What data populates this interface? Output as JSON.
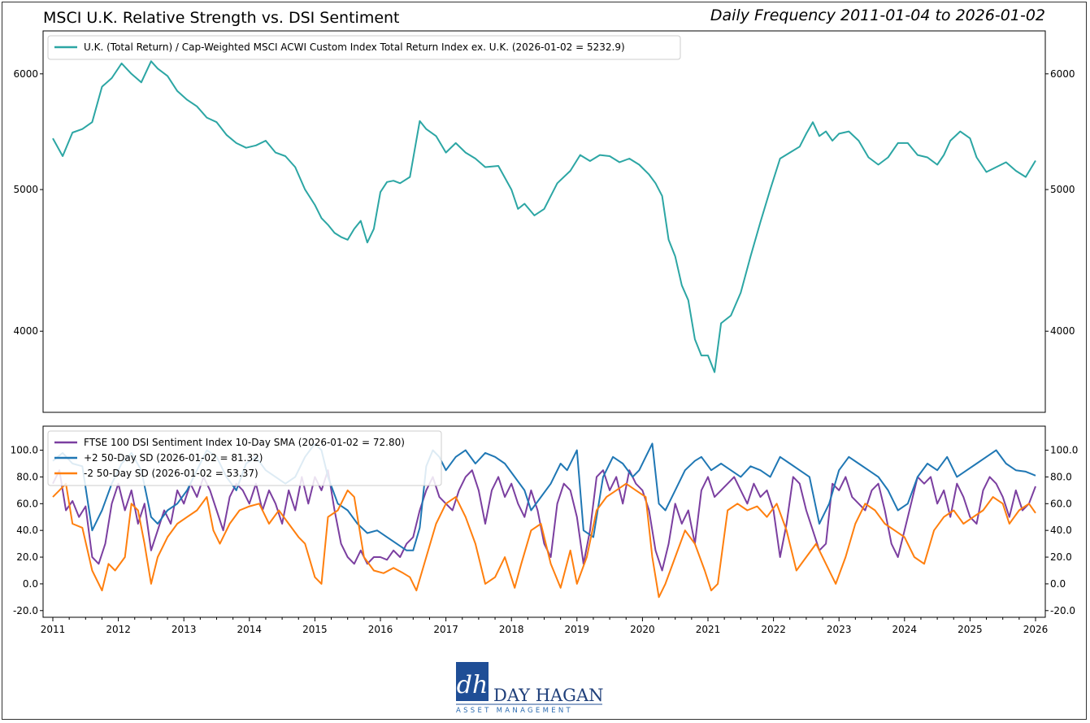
{
  "header": {
    "title": "MSCI U.K. Relative Strength vs. DSI Sentiment",
    "subtitle": "Daily Frequency 2011-01-04 to 2026-01-02"
  },
  "logo": {
    "line1": "DAY HAGAN",
    "line2": "ASSET MANAGEMENT",
    "monogram": "dh"
  },
  "colors": {
    "top_series": "#2ca6a4",
    "dsi": "#7b3fa0",
    "upper_band": "#1f77b4",
    "lower_band": "#ff7f0e"
  },
  "chart_data": [
    {
      "type": "line",
      "scale": "log",
      "x_range": [
        2011.0,
        2026.0
      ],
      "ylim": [
        3520,
        6420
      ],
      "yticks": [
        4000,
        5000,
        6000
      ],
      "grid": false,
      "legend_position": "top-left",
      "series": [
        {
          "name": "U.K. (Total Return) / Cap-Weighted MSCI ACWI Custom Index Total Return Index ex. U.K. (2026-01-02 = 5232.9)",
          "x": [
            2011.0,
            2011.15,
            2011.3,
            2011.45,
            2011.6,
            2011.75,
            2011.9,
            2012.05,
            2012.2,
            2012.35,
            2012.5,
            2012.6,
            2012.75,
            2012.9,
            2013.05,
            2013.2,
            2013.35,
            2013.5,
            2013.65,
            2013.8,
            2013.95,
            2014.1,
            2014.25,
            2014.4,
            2014.55,
            2014.7,
            2014.85,
            2015.0,
            2015.1,
            2015.2,
            2015.3,
            2015.4,
            2015.5,
            2015.6,
            2015.7,
            2015.8,
            2015.9,
            2016.0,
            2016.1,
            2016.2,
            2016.3,
            2016.45,
            2016.6,
            2016.7,
            2016.85,
            2017.0,
            2017.15,
            2017.3,
            2017.45,
            2017.6,
            2017.8,
            2018.0,
            2018.1,
            2018.2,
            2018.35,
            2018.5,
            2018.7,
            2018.9,
            2019.05,
            2019.2,
            2019.35,
            2019.5,
            2019.65,
            2019.8,
            2019.95,
            2020.1,
            2020.2,
            2020.3,
            2020.4,
            2020.5,
            2020.6,
            2020.7,
            2020.8,
            2020.9,
            2021.0,
            2021.1,
            2021.2,
            2021.35,
            2021.5,
            2021.65,
            2021.8,
            2021.95,
            2022.1,
            2022.25,
            2022.4,
            2022.5,
            2022.6,
            2022.7,
            2022.8,
            2022.9,
            2023.0,
            2023.15,
            2023.3,
            2023.45,
            2023.6,
            2023.75,
            2023.9,
            2024.05,
            2024.2,
            2024.35,
            2024.5,
            2024.6,
            2024.7,
            2024.85,
            2025.0,
            2025.1,
            2025.25,
            2025.4,
            2025.55,
            2025.7,
            2025.85,
            2026.0
          ],
          "y": [
            5420,
            5270,
            5470,
            5500,
            5560,
            5880,
            5960,
            6100,
            6000,
            5920,
            6120,
            6050,
            5980,
            5840,
            5760,
            5700,
            5600,
            5560,
            5450,
            5380,
            5340,
            5360,
            5400,
            5300,
            5270,
            5180,
            5000,
            4880,
            4780,
            4730,
            4670,
            4640,
            4620,
            4700,
            4760,
            4600,
            4700,
            4980,
            5060,
            5070,
            5050,
            5100,
            5570,
            5500,
            5440,
            5300,
            5380,
            5300,
            5250,
            5180,
            5190,
            5000,
            4850,
            4890,
            4800,
            4850,
            5050,
            5150,
            5280,
            5230,
            5280,
            5270,
            5220,
            5250,
            5200,
            5120,
            5050,
            4950,
            4620,
            4500,
            4300,
            4200,
            3950,
            3850,
            3850,
            3750,
            4050,
            4100,
            4250,
            4500,
            4750,
            5000,
            5250,
            5300,
            5350,
            5460,
            5560,
            5440,
            5480,
            5400,
            5460,
            5480,
            5400,
            5260,
            5200,
            5260,
            5380,
            5380,
            5280,
            5260,
            5200,
            5280,
            5400,
            5480,
            5420,
            5260,
            5140,
            5180,
            5220,
            5150,
            5100,
            5233
          ]
        }
      ]
    },
    {
      "type": "line",
      "x_range": [
        2011.0,
        2026.0
      ],
      "ylim": [
        -25,
        118
      ],
      "yticks": [
        -20.0,
        0.0,
        20.0,
        40.0,
        60.0,
        80.0,
        100.0
      ],
      "xticks": [
        2011,
        2012,
        2013,
        2014,
        2015,
        2016,
        2017,
        2018,
        2019,
        2020,
        2021,
        2022,
        2023,
        2024,
        2025,
        2026
      ],
      "grid": false,
      "legend_position": "top-left",
      "series": [
        {
          "name": "FTSE 100 DSI Sentiment Index 10-Day SMA (2026-01-02 = 72.80)",
          "x": [
            2011.0,
            2011.1,
            2011.2,
            2011.3,
            2011.4,
            2011.5,
            2011.6,
            2011.7,
            2011.8,
            2011.9,
            2012.0,
            2012.1,
            2012.2,
            2012.3,
            2012.4,
            2012.5,
            2012.6,
            2012.7,
            2012.8,
            2012.9,
            2013.0,
            2013.1,
            2013.2,
            2013.3,
            2013.4,
            2013.5,
            2013.6,
            2013.7,
            2013.8,
            2013.9,
            2014.0,
            2014.1,
            2014.2,
            2014.3,
            2014.4,
            2014.5,
            2014.6,
            2014.7,
            2014.8,
            2014.9,
            2015.0,
            2015.1,
            2015.2,
            2015.3,
            2015.4,
            2015.5,
            2015.6,
            2015.7,
            2015.8,
            2015.9,
            2016.0,
            2016.1,
            2016.2,
            2016.3,
            2016.4,
            2016.5,
            2016.6,
            2016.7,
            2016.8,
            2016.9,
            2017.0,
            2017.1,
            2017.2,
            2017.3,
            2017.4,
            2017.5,
            2017.6,
            2017.7,
            2017.8,
            2017.9,
            2018.0,
            2018.1,
            2018.2,
            2018.3,
            2018.4,
            2018.5,
            2018.6,
            2018.7,
            2018.8,
            2018.9,
            2019.0,
            2019.1,
            2019.2,
            2019.3,
            2019.4,
            2019.5,
            2019.6,
            2019.7,
            2019.8,
            2019.9,
            2020.0,
            2020.1,
            2020.2,
            2020.3,
            2020.4,
            2020.5,
            2020.6,
            2020.7,
            2020.8,
            2020.9,
            2021.0,
            2021.1,
            2021.2,
            2021.3,
            2021.4,
            2021.5,
            2021.6,
            2021.7,
            2021.8,
            2021.9,
            2022.0,
            2022.1,
            2022.2,
            2022.3,
            2022.4,
            2022.5,
            2022.6,
            2022.7,
            2022.8,
            2022.9,
            2023.0,
            2023.1,
            2023.2,
            2023.3,
            2023.4,
            2023.5,
            2023.6,
            2023.7,
            2023.8,
            2023.9,
            2024.0,
            2024.1,
            2024.2,
            2024.3,
            2024.4,
            2024.5,
            2024.6,
            2024.7,
            2024.8,
            2024.9,
            2025.0,
            2025.1,
            2025.2,
            2025.3,
            2025.4,
            2025.5,
            2025.6,
            2025.7,
            2025.8,
            2025.9,
            2026.0
          ],
          "y": [
            75,
            85,
            55,
            62,
            50,
            58,
            20,
            15,
            30,
            60,
            75,
            55,
            70,
            45,
            60,
            25,
            40,
            55,
            45,
            70,
            60,
            75,
            65,
            80,
            70,
            55,
            40,
            65,
            75,
            70,
            60,
            75,
            55,
            70,
            60,
            45,
            70,
            55,
            80,
            60,
            80,
            70,
            85,
            55,
            30,
            20,
            15,
            25,
            15,
            20,
            20,
            18,
            25,
            20,
            30,
            35,
            55,
            70,
            80,
            65,
            60,
            55,
            70,
            80,
            85,
            70,
            45,
            70,
            80,
            65,
            75,
            60,
            50,
            70,
            55,
            30,
            20,
            60,
            75,
            70,
            50,
            15,
            40,
            80,
            85,
            70,
            80,
            60,
            85,
            75,
            70,
            55,
            25,
            10,
            30,
            60,
            45,
            55,
            30,
            70,
            80,
            65,
            70,
            75,
            80,
            70,
            60,
            75,
            65,
            70,
            55,
            20,
            45,
            80,
            75,
            55,
            40,
            25,
            30,
            75,
            70,
            80,
            65,
            60,
            55,
            70,
            75,
            55,
            30,
            20,
            40,
            60,
            80,
            75,
            80,
            60,
            70,
            50,
            75,
            65,
            50,
            45,
            70,
            80,
            75,
            65,
            50,
            70,
            55,
            60,
            73
          ]
        },
        {
          "name": "+2 50-Day SD (2026-01-02 = 81.32)",
          "x": [
            2011.0,
            2011.15,
            2011.3,
            2011.45,
            2011.6,
            2011.75,
            2011.9,
            2012.05,
            2012.2,
            2012.35,
            2012.5,
            2012.6,
            2012.75,
            2012.9,
            2013.05,
            2013.2,
            2013.35,
            2013.5,
            2013.65,
            2013.8,
            2013.95,
            2014.1,
            2014.25,
            2014.4,
            2014.55,
            2014.7,
            2014.85,
            2015.0,
            2015.1,
            2015.2,
            2015.35,
            2015.5,
            2015.65,
            2015.8,
            2015.95,
            2016.1,
            2016.25,
            2016.4,
            2016.5,
            2016.6,
            2016.7,
            2016.8,
            2016.9,
            2017.0,
            2017.15,
            2017.3,
            2017.45,
            2017.6,
            2017.75,
            2017.9,
            2018.05,
            2018.2,
            2018.3,
            2018.45,
            2018.6,
            2018.75,
            2018.85,
            2019.0,
            2019.1,
            2019.25,
            2019.4,
            2019.55,
            2019.7,
            2019.85,
            2019.95,
            2020.05,
            2020.15,
            2020.25,
            2020.35,
            2020.5,
            2020.65,
            2020.8,
            2020.9,
            2021.05,
            2021.2,
            2021.35,
            2021.5,
            2021.65,
            2021.8,
            2021.95,
            2022.1,
            2022.25,
            2022.4,
            2022.55,
            2022.7,
            2022.85,
            2023.0,
            2023.15,
            2023.3,
            2023.45,
            2023.6,
            2023.75,
            2023.9,
            2024.05,
            2024.2,
            2024.35,
            2024.5,
            2024.65,
            2024.8,
            2024.95,
            2025.1,
            2025.25,
            2025.4,
            2025.55,
            2025.7,
            2025.85,
            2026.0
          ],
          "y": [
            92,
            98,
            90,
            88,
            40,
            55,
            75,
            90,
            98,
            85,
            50,
            45,
            55,
            60,
            70,
            85,
            100,
            95,
            80,
            70,
            90,
            95,
            85,
            80,
            75,
            80,
            95,
            105,
            100,
            80,
            60,
            55,
            45,
            38,
            40,
            35,
            30,
            25,
            25,
            42,
            88,
            100,
            95,
            85,
            95,
            100,
            90,
            98,
            95,
            90,
            80,
            70,
            55,
            65,
            75,
            90,
            85,
            100,
            40,
            35,
            80,
            95,
            90,
            80,
            85,
            95,
            105,
            60,
            55,
            70,
            85,
            92,
            95,
            85,
            90,
            85,
            80,
            88,
            85,
            80,
            95,
            90,
            85,
            80,
            45,
            60,
            85,
            95,
            90,
            85,
            80,
            70,
            55,
            60,
            80,
            90,
            85,
            95,
            80,
            85,
            90,
            95,
            100,
            90,
            85,
            84,
            81
          ]
        },
        {
          "name": "-2 50-Day SD (2026-01-02 = 53.37)",
          "x": [
            2011.0,
            2011.1,
            2011.2,
            2011.3,
            2011.45,
            2011.6,
            2011.75,
            2011.85,
            2011.95,
            2012.1,
            2012.2,
            2012.3,
            2012.4,
            2012.5,
            2012.6,
            2012.75,
            2012.9,
            2013.05,
            2013.2,
            2013.35,
            2013.45,
            2013.55,
            2013.7,
            2013.85,
            2014.0,
            2014.15,
            2014.3,
            2014.45,
            2014.6,
            2014.75,
            2014.85,
            2015.0,
            2015.1,
            2015.2,
            2015.35,
            2015.5,
            2015.6,
            2015.75,
            2015.9,
            2016.05,
            2016.2,
            2016.35,
            2016.45,
            2016.55,
            2016.7,
            2016.85,
            2017.0,
            2017.15,
            2017.3,
            2017.45,
            2017.6,
            2017.75,
            2017.9,
            2018.05,
            2018.15,
            2018.3,
            2018.45,
            2018.6,
            2018.75,
            2018.9,
            2019.0,
            2019.15,
            2019.3,
            2019.45,
            2019.6,
            2019.75,
            2019.9,
            2020.05,
            2020.15,
            2020.25,
            2020.35,
            2020.5,
            2020.65,
            2020.8,
            2020.95,
            2021.05,
            2021.15,
            2021.3,
            2021.45,
            2021.6,
            2021.75,
            2021.9,
            2022.05,
            2022.2,
            2022.35,
            2022.5,
            2022.65,
            2022.8,
            2022.95,
            2023.1,
            2023.25,
            2023.4,
            2023.55,
            2023.7,
            2023.85,
            2024.0,
            2024.15,
            2024.3,
            2024.45,
            2024.6,
            2024.75,
            2024.9,
            2025.05,
            2025.2,
            2025.35,
            2025.5,
            2025.6,
            2025.75,
            2025.9,
            2026.0
          ],
          "y": [
            65,
            70,
            75,
            45,
            42,
            10,
            -5,
            15,
            10,
            20,
            60,
            55,
            30,
            0,
            20,
            35,
            45,
            50,
            55,
            65,
            40,
            30,
            45,
            55,
            58,
            60,
            45,
            55,
            45,
            35,
            30,
            5,
            0,
            50,
            55,
            70,
            65,
            20,
            10,
            8,
            12,
            8,
            5,
            -5,
            20,
            45,
            60,
            65,
            50,
            30,
            0,
            5,
            20,
            -3,
            15,
            40,
            45,
            15,
            -3,
            25,
            0,
            20,
            55,
            65,
            70,
            75,
            70,
            65,
            20,
            -10,
            0,
            20,
            40,
            30,
            10,
            -5,
            0,
            55,
            60,
            55,
            58,
            50,
            60,
            40,
            10,
            20,
            30,
            15,
            0,
            20,
            45,
            60,
            55,
            45,
            40,
            35,
            20,
            15,
            40,
            50,
            55,
            45,
            50,
            55,
            65,
            60,
            45,
            55,
            60,
            53
          ]
        }
      ]
    }
  ]
}
